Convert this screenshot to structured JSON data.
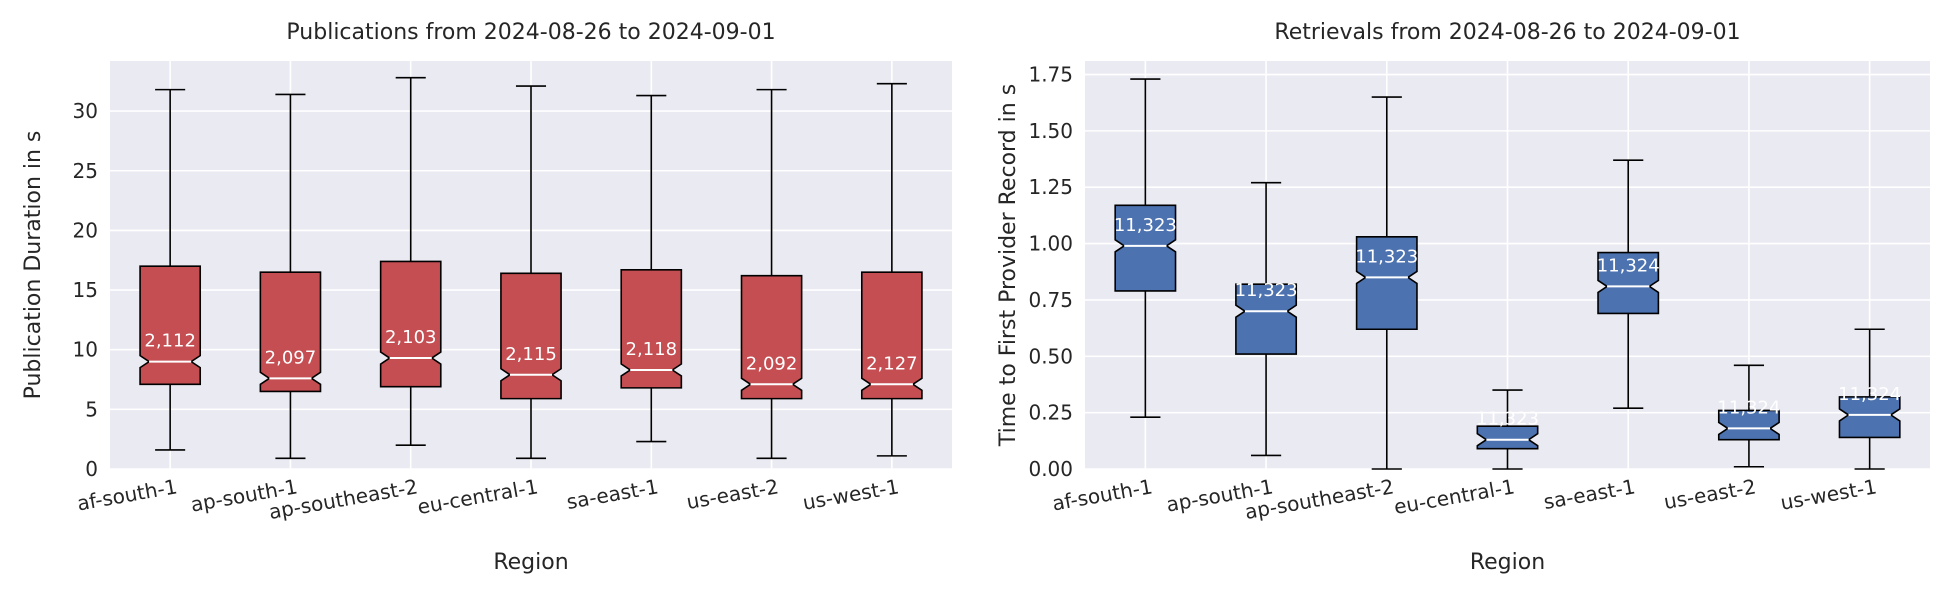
{
  "chart_data": [
    {
      "type": "boxplot",
      "title": "Publications from 2024-08-26 to 2024-09-01",
      "xlabel": "Region",
      "ylabel": "Publication Duration in s",
      "ylim": [
        0,
        34.2
      ],
      "yticks": [
        0,
        5,
        10,
        15,
        20,
        25,
        30
      ],
      "ytick_labels": [
        "0",
        "5",
        "10",
        "15",
        "20",
        "25",
        "30"
      ],
      "notched": true,
      "grid": true,
      "color": "#c44e52",
      "median_color": "#ffffff",
      "categories": [
        "af-south-1",
        "ap-south-1",
        "ap-southeast-2",
        "eu-central-1",
        "sa-east-1",
        "us-east-2",
        "us-west-1"
      ],
      "boxes": [
        {
          "whislo": 1.6,
          "q1": 7.1,
          "med": 9.0,
          "q3": 17.0,
          "whishi": 31.8,
          "count": "2,112"
        },
        {
          "whislo": 0.9,
          "q1": 6.5,
          "med": 7.6,
          "q3": 16.5,
          "whishi": 31.4,
          "count": "2,097"
        },
        {
          "whislo": 2.0,
          "q1": 6.9,
          "med": 9.3,
          "q3": 17.4,
          "whishi": 32.8,
          "count": "2,103"
        },
        {
          "whislo": 0.9,
          "q1": 5.9,
          "med": 7.9,
          "q3": 16.4,
          "whishi": 32.1,
          "count": "2,115"
        },
        {
          "whislo": 2.3,
          "q1": 6.8,
          "med": 8.3,
          "q3": 16.7,
          "whishi": 31.3,
          "count": "2,118"
        },
        {
          "whislo": 0.9,
          "q1": 5.9,
          "med": 7.1,
          "q3": 16.2,
          "whishi": 31.8,
          "count": "2,092"
        },
        {
          "whislo": 1.1,
          "q1": 5.9,
          "med": 7.1,
          "q3": 16.5,
          "whishi": 32.3,
          "count": "2,127"
        }
      ]
    },
    {
      "type": "boxplot",
      "title": "Retrievals from 2024-08-26 to 2024-09-01",
      "xlabel": "Region",
      "ylabel": "Time to First Provider Record in s",
      "ylim": [
        0,
        1.81
      ],
      "yticks": [
        0,
        0.25,
        0.5,
        0.75,
        1.0,
        1.25,
        1.5,
        1.75
      ],
      "ytick_labels": [
        "0.00",
        "0.25",
        "0.50",
        "0.75",
        "1.00",
        "1.25",
        "1.50",
        "1.75"
      ],
      "notched": true,
      "grid": true,
      "color": "#4c72b0",
      "median_color": "#ffffff",
      "categories": [
        "af-south-1",
        "ap-south-1",
        "ap-southeast-2",
        "eu-central-1",
        "sa-east-1",
        "us-east-2",
        "us-west-1"
      ],
      "boxes": [
        {
          "whislo": 0.23,
          "q1": 0.79,
          "med": 0.99,
          "q3": 1.17,
          "whishi": 1.73,
          "count": "11,323"
        },
        {
          "whislo": 0.06,
          "q1": 0.51,
          "med": 0.7,
          "q3": 0.82,
          "whishi": 1.27,
          "count": "11,323"
        },
        {
          "whislo": 0.0,
          "q1": 0.62,
          "med": 0.85,
          "q3": 1.03,
          "whishi": 1.65,
          "count": "11,323"
        },
        {
          "whislo": 0.0,
          "q1": 0.09,
          "med": 0.13,
          "q3": 0.19,
          "whishi": 0.35,
          "count": "11,323"
        },
        {
          "whislo": 0.27,
          "q1": 0.69,
          "med": 0.81,
          "q3": 0.96,
          "whishi": 1.37,
          "count": "11,324"
        },
        {
          "whislo": 0.01,
          "q1": 0.13,
          "med": 0.18,
          "q3": 0.26,
          "whishi": 0.46,
          "count": "11,324"
        },
        {
          "whislo": 0.0,
          "q1": 0.14,
          "med": 0.24,
          "q3": 0.32,
          "whishi": 0.62,
          "count": "11,324"
        }
      ]
    }
  ]
}
